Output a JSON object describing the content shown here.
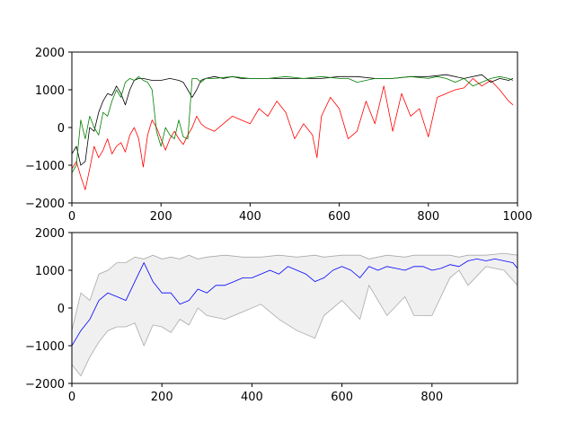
{
  "chart_data": [
    {
      "type": "line",
      "xlim": [
        0,
        1000
      ],
      "ylim": [
        -2000,
        2000
      ],
      "xticks": [
        "0",
        "200",
        "400",
        "600",
        "800",
        "1000"
      ],
      "yticks": [
        "−2000",
        "−1000",
        "0",
        "1000",
        "2000"
      ],
      "grid": false,
      "series": [
        {
          "color": "#ff0000",
          "x": [
            0,
            10,
            20,
            30,
            40,
            50,
            60,
            70,
            80,
            90,
            100,
            110,
            120,
            130,
            140,
            150,
            160,
            170,
            180,
            190,
            200,
            210,
            220,
            230,
            240,
            250,
            260,
            270,
            280,
            290,
            300,
            320,
            340,
            360,
            380,
            400,
            420,
            440,
            460,
            480,
            500,
            520,
            540,
            550,
            560,
            580,
            600,
            620,
            640,
            660,
            680,
            700,
            720,
            740,
            760,
            780,
            800,
            820,
            840,
            860,
            880,
            900,
            920,
            940,
            960,
            980,
            990
          ],
          "y": [
            -1100,
            -900,
            -1300,
            -1650,
            -1100,
            -500,
            -800,
            -600,
            -300,
            -700,
            -500,
            -400,
            -650,
            -200,
            0,
            -300,
            -1050,
            -200,
            200,
            0,
            -300,
            -600,
            -300,
            -100,
            -300,
            -450,
            -200,
            0,
            300,
            100,
            0,
            -100,
            100,
            300,
            200,
            100,
            500,
            300,
            700,
            400,
            -300,
            100,
            -200,
            -800,
            300,
            800,
            500,
            -300,
            -100,
            700,
            100,
            1100,
            -100,
            900,
            300,
            500,
            -250,
            800,
            900,
            1000,
            1050,
            1300,
            1100,
            1250,
            1000,
            700,
            600
          ]
        },
        {
          "color": "#000000",
          "x": [
            0,
            10,
            20,
            30,
            40,
            50,
            60,
            70,
            80,
            90,
            100,
            110,
            120,
            130,
            140,
            150,
            160,
            180,
            200,
            220,
            240,
            250,
            260,
            270,
            280,
            290,
            300,
            320,
            340,
            360,
            380,
            400,
            440,
            480,
            520,
            560,
            600,
            640,
            680,
            720,
            760,
            800,
            840,
            880,
            920,
            940,
            960,
            980,
            990
          ],
          "y": [
            -700,
            -500,
            -1000,
            -900,
            0,
            -100,
            400,
            700,
            900,
            850,
            1100,
            900,
            600,
            1000,
            1250,
            1300,
            1300,
            1250,
            1250,
            1300,
            1250,
            1200,
            1000,
            800,
            1000,
            1250,
            1300,
            1350,
            1300,
            1350,
            1300,
            1300,
            1300,
            1300,
            1300,
            1300,
            1350,
            1350,
            1300,
            1300,
            1350,
            1350,
            1400,
            1300,
            1400,
            1200,
            1300,
            1250,
            1300
          ]
        },
        {
          "color": "#008000",
          "x": [
            0,
            10,
            20,
            30,
            40,
            50,
            60,
            70,
            80,
            90,
            100,
            110,
            120,
            130,
            140,
            150,
            160,
            170,
            180,
            190,
            200,
            210,
            220,
            230,
            240,
            250,
            260,
            270,
            280,
            290,
            300,
            320,
            360,
            400,
            440,
            480,
            520,
            560,
            600,
            620,
            640,
            680,
            720,
            760,
            800,
            820,
            840,
            860,
            880,
            900,
            920,
            940,
            960,
            980,
            990
          ],
          "y": [
            -1200,
            -1000,
            200,
            -300,
            300,
            0,
            -200,
            400,
            300,
            700,
            1000,
            800,
            1200,
            1300,
            1250,
            1350,
            1250,
            1200,
            1000,
            -100,
            -500,
            0,
            -200,
            -300,
            200,
            -250,
            -300,
            1300,
            1300,
            1200,
            1300,
            1300,
            1350,
            1300,
            1300,
            1350,
            1300,
            1350,
            1300,
            1300,
            1200,
            1300,
            1300,
            1350,
            1300,
            1350,
            1300,
            1200,
            1300,
            1100,
            1200,
            1300,
            1350,
            1300,
            1250
          ]
        }
      ]
    },
    {
      "type": "area",
      "xlim": [
        0,
        990
      ],
      "ylim": [
        -2000,
        2000
      ],
      "xticks": [
        "0",
        "200",
        "400",
        "600",
        "800"
      ],
      "yticks": [
        "−2000",
        "−1000",
        "0",
        "1000",
        "2000"
      ],
      "grid": false,
      "band": {
        "fill": "#f0f0f0",
        "edge": "#a9a9a9",
        "x": [
          0,
          20,
          40,
          60,
          80,
          100,
          120,
          140,
          160,
          180,
          200,
          220,
          240,
          260,
          280,
          300,
          340,
          380,
          420,
          460,
          500,
          540,
          560,
          600,
          640,
          660,
          700,
          740,
          760,
          800,
          840,
          860,
          880,
          920,
          960,
          990
        ],
        "upper": [
          -600,
          400,
          200,
          900,
          1000,
          1200,
          1200,
          1350,
          1300,
          1400,
          1300,
          1350,
          1300,
          1400,
          1300,
          1350,
          1400,
          1350,
          1350,
          1400,
          1350,
          1400,
          1350,
          1400,
          1400,
          1300,
          1400,
          1350,
          1400,
          1400,
          1400,
          1350,
          1400,
          1400,
          1450,
          1400
        ],
        "lower": [
          -1500,
          -1800,
          -1300,
          -900,
          -600,
          -500,
          -500,
          -400,
          -1000,
          -450,
          -500,
          -650,
          -300,
          -450,
          0,
          -200,
          -300,
          -100,
          100,
          -300,
          -600,
          -800,
          -200,
          200,
          -300,
          600,
          -200,
          300,
          -200,
          -200,
          800,
          1000,
          600,
          1100,
          1000,
          600
        ]
      },
      "series": [
        {
          "color": "#0000ff",
          "x": [
            0,
            20,
            40,
            60,
            80,
            100,
            120,
            140,
            160,
            180,
            200,
            220,
            240,
            260,
            280,
            300,
            320,
            340,
            360,
            380,
            400,
            420,
            440,
            460,
            480,
            500,
            520,
            540,
            560,
            580,
            600,
            620,
            640,
            660,
            680,
            700,
            720,
            740,
            760,
            780,
            800,
            820,
            840,
            860,
            880,
            900,
            920,
            940,
            960,
            980,
            990
          ],
          "y": [
            -1000,
            -600,
            -300,
            200,
            400,
            300,
            200,
            700,
            1200,
            700,
            400,
            400,
            100,
            200,
            500,
            400,
            600,
            600,
            700,
            800,
            800,
            900,
            1000,
            900,
            1100,
            1000,
            900,
            700,
            800,
            1000,
            1100,
            1000,
            800,
            1100,
            1000,
            1100,
            1050,
            1000,
            1100,
            1100,
            1000,
            1050,
            1150,
            1100,
            1250,
            1300,
            1250,
            1300,
            1250,
            1200,
            1050
          ]
        }
      ]
    }
  ]
}
